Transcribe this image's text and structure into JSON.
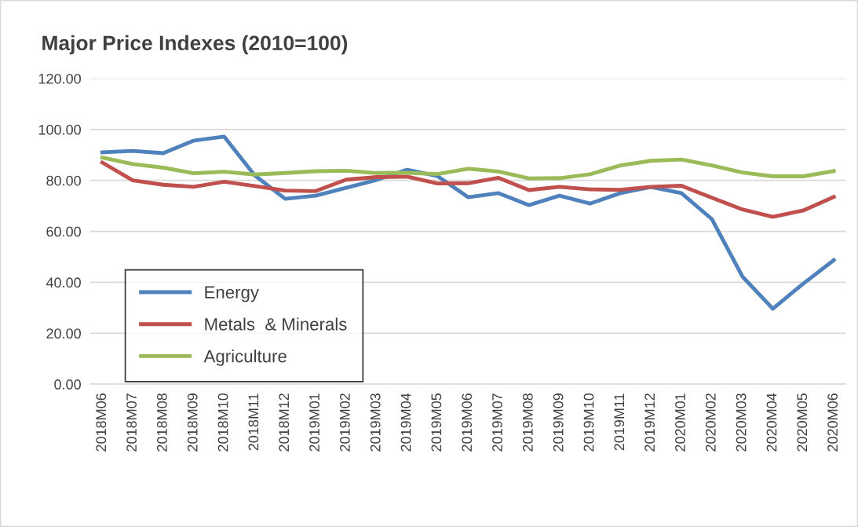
{
  "chart_data": {
    "type": "line",
    "title": "Major Price Indexes (2010=100)",
    "categories": [
      "2018M06",
      "2018M07",
      "2018M08",
      "2018M09",
      "2018M10",
      "2018M11",
      "2018M12",
      "2019M01",
      "2019M02",
      "2019M03",
      "2019M04",
      "2019M05",
      "2019M06",
      "2019M07",
      "2019M08",
      "2019M09",
      "2019M10",
      "2019M11",
      "2019M12",
      "2020M01",
      "2020M02",
      "2020M03",
      "2020M04",
      "2020M05",
      "2020M06"
    ],
    "series": [
      {
        "name": "Energy",
        "color": "#4f81bd",
        "values": [
          91,
          91.6,
          90.7,
          95.6,
          97.2,
          82,
          72.8,
          74,
          77.1,
          80.2,
          84.2,
          81.7,
          73.4,
          75,
          70.3,
          74,
          70.9,
          75,
          77.4,
          75,
          64.8,
          42.3,
          29.6,
          39.5,
          48.7
        ]
      },
      {
        "name": "Metals  & Minerals",
        "color": "#c0504d",
        "values": [
          87,
          80,
          78.3,
          77.5,
          79.5,
          77.8,
          76,
          75.8,
          80.3,
          81.3,
          81.5,
          78.8,
          78.9,
          81,
          76.2,
          77.5,
          76.5,
          76.3,
          77.5,
          77.9,
          73.2,
          68.6,
          65.7,
          68.2,
          73.5
        ]
      },
      {
        "name": "Agriculture",
        "color": "#9bbb59",
        "values": [
          89,
          86.4,
          85,
          82.8,
          83.4,
          82.3,
          82.9,
          83.6,
          83.8,
          82.9,
          83,
          82.5,
          84.6,
          83.5,
          80.8,
          80.9,
          82.4,
          85.9,
          87.7,
          88.2,
          85.9,
          83.1,
          81.6,
          81.6,
          83.7
        ]
      }
    ],
    "ylim": [
      0,
      120
    ],
    "yticks": [
      {
        "value": 0,
        "label": "0.00"
      },
      {
        "value": 20,
        "label": "20.00"
      },
      {
        "value": 40,
        "label": "40.00"
      },
      {
        "value": 60,
        "label": "60.00"
      },
      {
        "value": 80,
        "label": "80.00"
      },
      {
        "value": 100,
        "label": "100.00"
      },
      {
        "value": 120,
        "label": "120.00"
      }
    ],
    "grid": "y",
    "legend": "bottom left",
    "marker": "none",
    "line_style": "solid"
  }
}
